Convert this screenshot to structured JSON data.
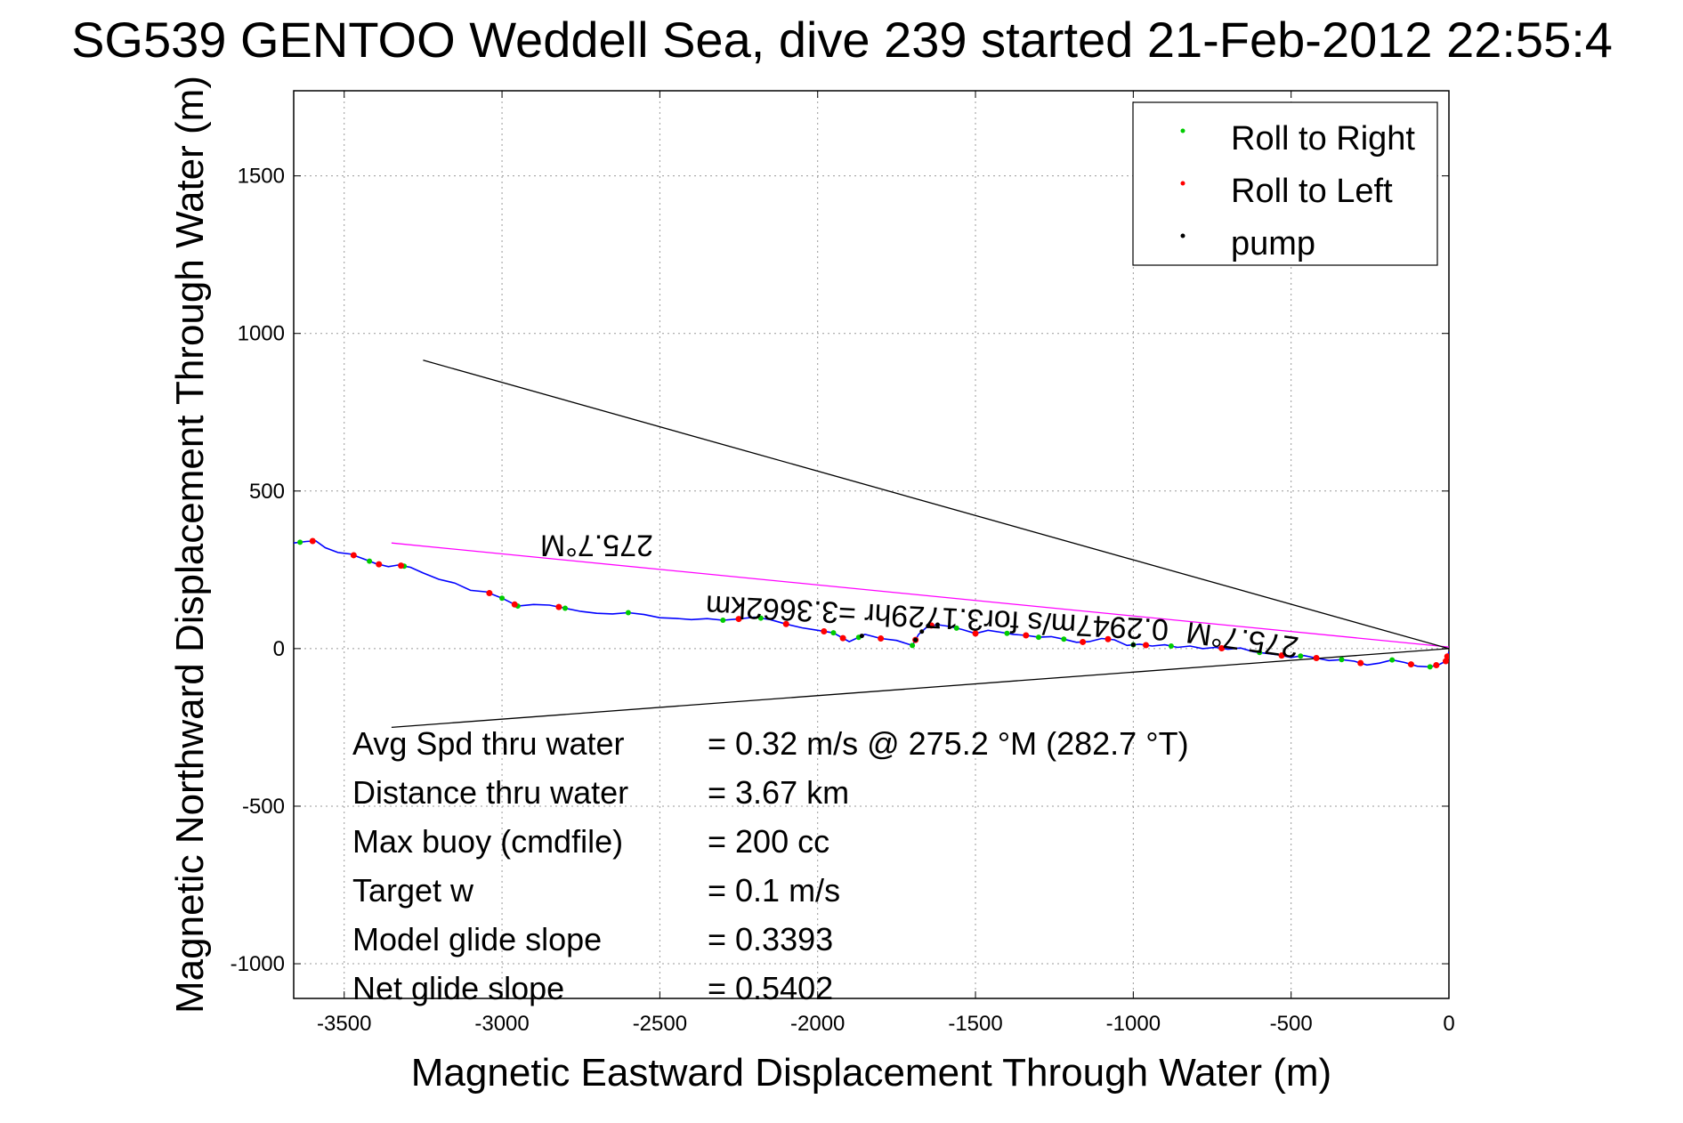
{
  "chart_data": {
    "type": "line",
    "title": "SG539 GENTOO Weddell Sea, dive 239 started 21-Feb-2012 22:55:4",
    "xlabel": "Magnetic Eastward Displacement Through Water (m)",
    "ylabel": "Magnetic Northward Displacement Through Water (m)",
    "xlim": [
      -3660,
      0
    ],
    "ylim": [
      -1110,
      1770
    ],
    "xticks": [
      -3500,
      -3000,
      -2500,
      -2000,
      -1500,
      -1000,
      -500,
      0
    ],
    "yticks": [
      -1000,
      -500,
      0,
      500,
      1000,
      1500
    ],
    "grid": true,
    "legend_position": "top-right",
    "colors": {
      "track": "#0000ff",
      "roll_right": "#00cc00",
      "roll_left": "#ff0000",
      "pump": "#000000",
      "heading_line": "#ff00ff",
      "wedge_lines": "#000000"
    },
    "legend": [
      {
        "name": "Roll to Right",
        "color": "#00cc00"
      },
      {
        "name": "Roll to Left",
        "color": "#ff0000"
      },
      {
        "name": "pump",
        "color": "#000000"
      }
    ],
    "series": [
      {
        "name": "track",
        "x": [
          -3660,
          -3620,
          -3590,
          -3560,
          -3520,
          -3480,
          -3440,
          -3400,
          -3360,
          -3330,
          -3290,
          -3250,
          -3200,
          -3150,
          -3100,
          -3050,
          -3000,
          -2950,
          -2900,
          -2850,
          -2800,
          -2750,
          -2700,
          -2650,
          -2600,
          -2550,
          -2500,
          -2450,
          -2400,
          -2350,
          -2300,
          -2250,
          -2200,
          -2150,
          -2100,
          -2050,
          -2000,
          -1950,
          -1900,
          -1850,
          -1800,
          -1750,
          -1700,
          -1680,
          -1650,
          -1620,
          -1580,
          -1540,
          -1500,
          -1460,
          -1420,
          -1380,
          -1340,
          -1300,
          -1260,
          -1220,
          -1180,
          -1140,
          -1100,
          -1060,
          -1020,
          -980,
          -940,
          -900,
          -860,
          -820,
          -780,
          -740,
          -700,
          -660,
          -620,
          -580,
          -540,
          -500,
          -460,
          -420,
          -380,
          -340,
          -300,
          -260,
          -220,
          -180,
          -140,
          -100,
          -60,
          -30,
          -10,
          0
        ],
        "y": [
          335,
          340,
          342,
          320,
          305,
          300,
          285,
          270,
          260,
          265,
          258,
          240,
          220,
          208,
          185,
          180,
          160,
          135,
          140,
          138,
          128,
          118,
          112,
          110,
          114,
          108,
          98,
          96,
          92,
          95,
          90,
          94,
          100,
          92,
          78,
          66,
          58,
          50,
          22,
          45,
          32,
          26,
          10,
          45,
          72,
          76,
          70,
          60,
          48,
          58,
          52,
          45,
          42,
          36,
          38,
          30,
          20,
          22,
          32,
          28,
          10,
          14,
          8,
          12,
          4,
          8,
          0,
          4,
          -2,
          2,
          -10,
          -15,
          -20,
          -28,
          -22,
          -30,
          -38,
          -35,
          -40,
          -52,
          -46,
          -36,
          -44,
          -56,
          -58,
          -50,
          -40,
          -10
        ]
      },
      {
        "name": "heading",
        "x": [
          -3350,
          0
        ],
        "y": [
          335,
          5
        ]
      },
      {
        "name": "wedge upper",
        "x": [
          -3250,
          0
        ],
        "y": [
          915,
          0
        ]
      },
      {
        "name": "wedge lower",
        "x": [
          -3350,
          0
        ],
        "y": [
          -250,
          0
        ]
      }
    ],
    "markers": {
      "roll_right_x": [
        -3640,
        -3420,
        -3310,
        -3000,
        -2950,
        -2800,
        -2600,
        -2300,
        -2180,
        -1950,
        -1870,
        -1700,
        -1560,
        -1400,
        -1300,
        -1220,
        -1000,
        -880,
        -600,
        -470,
        -340,
        -180,
        -60
      ],
      "roll_left_x": [
        -3600,
        -3470,
        -3390,
        -3320,
        -3040,
        -2960,
        -2820,
        -2250,
        -2100,
        -1980,
        -1920,
        -1800,
        -1690,
        -1640,
        -1500,
        -1340,
        -1160,
        -1080,
        -960,
        -720,
        -530,
        -420,
        -280,
        -120,
        -40,
        -10,
        -5
      ],
      "pump_x": [
        -1860,
        -1690,
        -1670,
        -1650,
        -1620,
        -1000
      ]
    },
    "annotations": [
      {
        "text": "275.7°M",
        "x": -2700,
        "y": 360,
        "rotation": 180
      },
      {
        "text": "0.2947m/s for3.1729hr =3.3662km",
        "x": -1620,
        "y": 130,
        "rotation": 183
      },
      {
        "text": "275.7°M",
        "x": -650,
        "y": 60,
        "rotation": 188
      }
    ],
    "stats": [
      {
        "label": "Avg Spd thru water",
        "value": "=  0.32 m/s @ 275.2 °M (282.7 °T)"
      },
      {
        "label": "Distance thru water",
        "value": "=  3.67 km"
      },
      {
        "label": "Max buoy (cmdfile)",
        "value": "= 200 cc"
      },
      {
        "label": "Target w",
        "value": "= 0.1 m/s"
      },
      {
        "label": "Model glide slope",
        "value": "= 0.3393"
      },
      {
        "label": "Net glide slope",
        "value": "= 0.5402"
      }
    ]
  }
}
